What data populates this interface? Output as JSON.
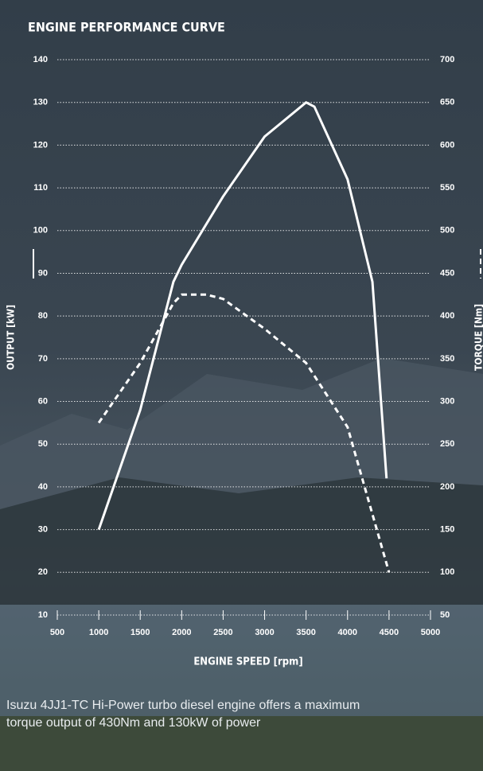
{
  "chart_data": {
    "type": "line",
    "title": "ENGINE PERFORMANCE CURVE",
    "xlabel": "ENGINE SPEED [rpm]",
    "ylabel": "OUTPUT [kW]",
    "y2label": "TORQUE [Nm]",
    "xlim": [
      500,
      5000
    ],
    "xticks": [
      500,
      1000,
      1500,
      2000,
      2500,
      3000,
      3500,
      4000,
      4500,
      5000
    ],
    "ylim": [
      10,
      140
    ],
    "yticks": [
      10,
      20,
      30,
      40,
      50,
      60,
      70,
      80,
      90,
      100,
      110,
      120,
      130,
      140
    ],
    "y2lim": [
      50,
      700
    ],
    "y2ticks": [
      50,
      100,
      150,
      200,
      250,
      300,
      350,
      400,
      450,
      500,
      550,
      600,
      650,
      700
    ],
    "grid": true,
    "series": [
      {
        "name": "OUTPUT",
        "color": "#ffffff",
        "dash": false,
        "x": [
          1000,
          1500,
          1900,
          2000,
          2500,
          3000,
          3500,
          3600,
          4000,
          4300,
          4470
        ],
        "values": [
          30,
          58,
          88,
          92,
          108,
          122,
          130,
          129,
          112,
          88,
          42
        ]
      },
      {
        "name": "TORQUE",
        "color": "#ffffff",
        "dash": true,
        "axis": "y2",
        "x": [
          1000,
          1500,
          1900,
          2000,
          2300,
          2500,
          3000,
          3500,
          4000,
          4500
        ],
        "values": [
          275,
          345,
          415,
          425,
          425,
          420,
          385,
          345,
          270,
          100
        ]
      }
    ]
  },
  "caption": "Isuzu 4JJ1-TC Hi-Power turbo diesel engine offers a maximum torque output of 430Nm and 130kW of power"
}
